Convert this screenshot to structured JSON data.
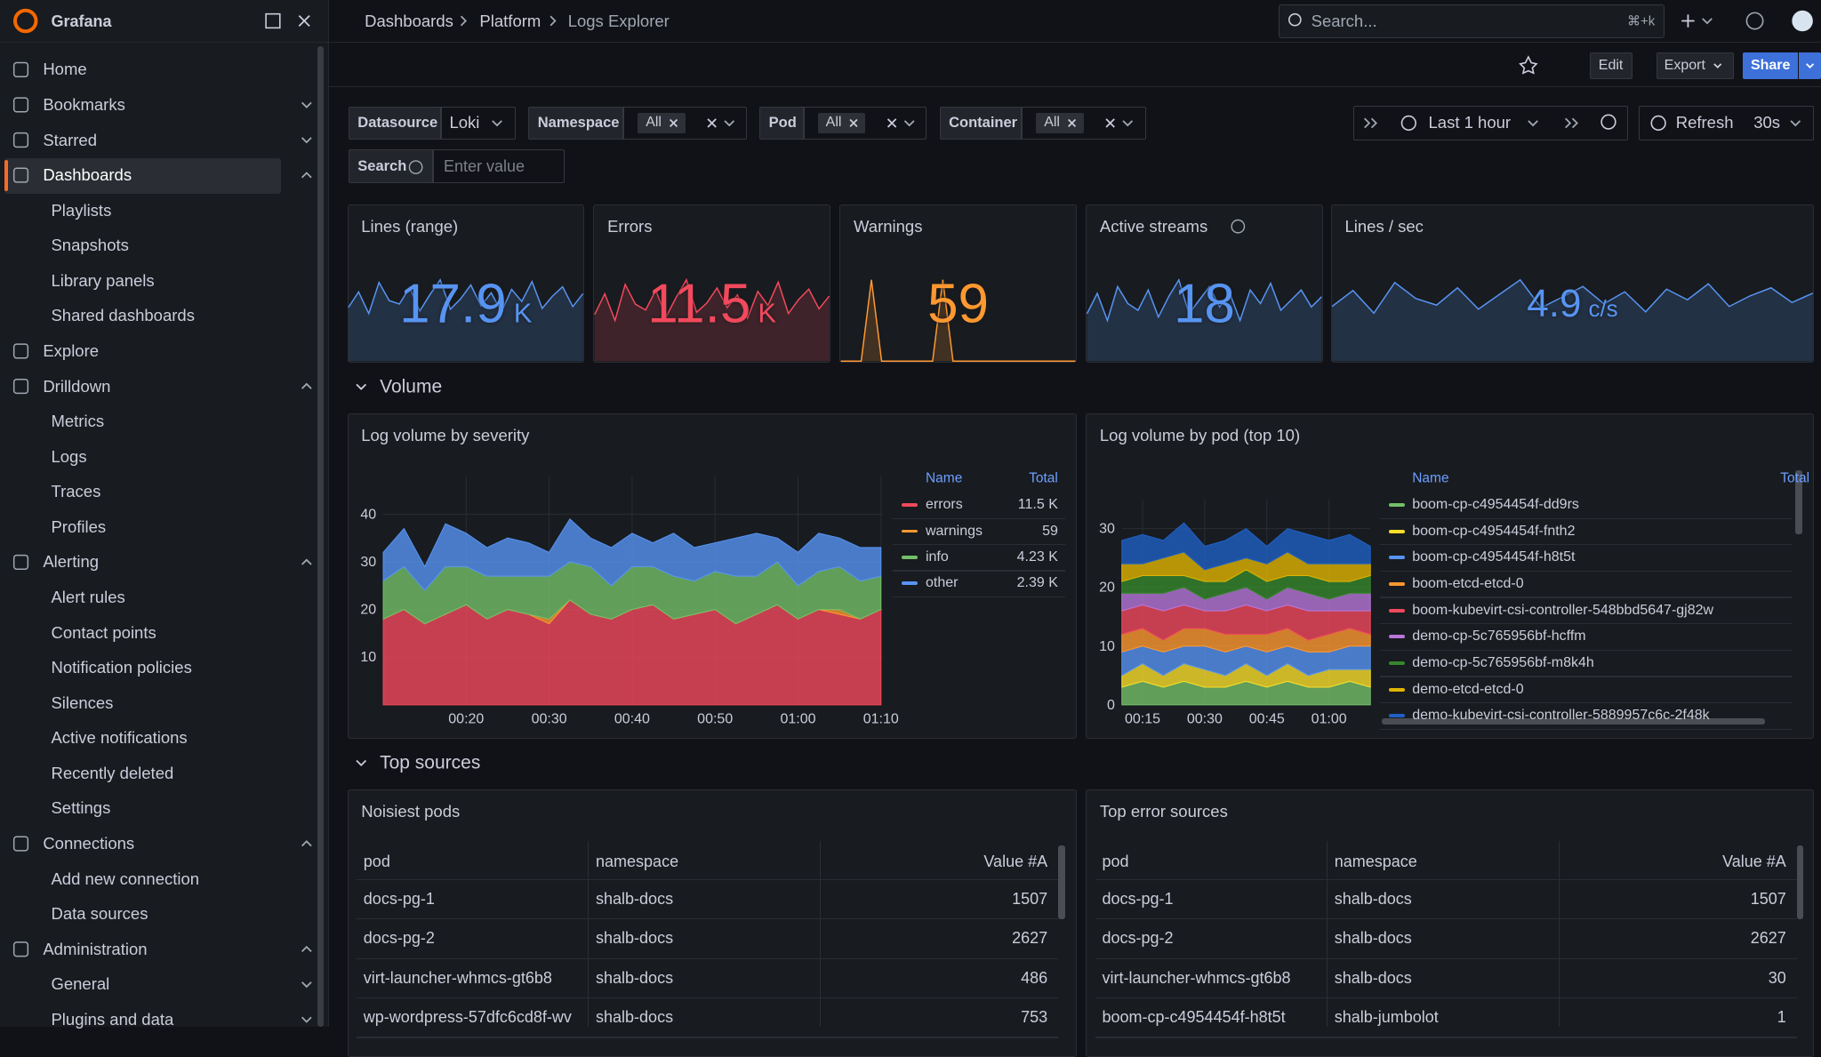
{
  "brand": "Grafana",
  "nav": [
    "Home",
    "Bookmarks",
    "Starred",
    "Dashboards",
    "Playlists",
    "Snapshots",
    "Library panels",
    "Shared dashboards",
    "Explore",
    "Drilldown",
    "Metrics",
    "Logs",
    "Traces",
    "Profiles",
    "Alerting",
    "Alert rules",
    "Contact points",
    "Notification policies",
    "Silences",
    "Active notifications",
    "Recently deleted",
    "Settings",
    "Connections",
    "Add new connection",
    "Data sources",
    "Administration",
    "General",
    "Plugins and data"
  ],
  "breadcrumbs": [
    "Dashboards",
    "Platform",
    "Logs Explorer"
  ],
  "search": {
    "placeholder": "Search...",
    "shortcut": "⌘+k"
  },
  "toolbar": {
    "edit": "Edit",
    "export": "Export",
    "share": "Share"
  },
  "variables": [
    {
      "label": "Datasource",
      "value": "Loki"
    },
    {
      "label": "Namespace",
      "value": "All"
    },
    {
      "label": "Pod",
      "value": "All"
    },
    {
      "label": "Container",
      "value": "All"
    }
  ],
  "search_variable": {
    "label": "Search",
    "placeholder": "Enter value"
  },
  "time_picker": {
    "range": "Last 1 hour",
    "refresh": "Refresh",
    "interval": "30s"
  },
  "stats": [
    {
      "title": "Lines (range)",
      "value": 17.9,
      "unit": "K",
      "color": "#5794f2",
      "sparkline": [
        62,
        80,
        55,
        91,
        70,
        66,
        85,
        58,
        77,
        94,
        60,
        72,
        88,
        64,
        79,
        57,
        83,
        69,
        92,
        61,
        75,
        86,
        63,
        78
      ]
    },
    {
      "title": "Errors",
      "value": 11.5,
      "unit": "K",
      "color": "#f2495c",
      "sparkline": [
        40,
        58,
        35,
        66,
        49,
        44,
        61,
        38,
        55,
        70,
        42,
        50,
        63,
        46,
        57,
        37,
        60,
        48,
        68,
        41,
        53,
        62,
        45,
        56
      ]
    },
    {
      "title": "Warnings",
      "value": 59,
      "color": "#ff9830",
      "sparkline": [
        0,
        0,
        0,
        1,
        0,
        0,
        0,
        0,
        0,
        0,
        1,
        0,
        0,
        0,
        0,
        0,
        0,
        0,
        0,
        0,
        0,
        0,
        0,
        0
      ]
    },
    {
      "title": "Active streams",
      "value": 18,
      "color": "#5794f2",
      "sparkline": [
        14,
        20,
        12,
        22,
        17,
        15,
        21,
        13,
        19,
        24,
        14,
        18,
        22,
        16,
        20,
        12,
        21,
        17,
        23,
        15,
        18,
        21,
        16,
        19
      ]
    },
    {
      "title": "Lines / sec",
      "value": 4.9,
      "unit": "c/s",
      "color": "#5794f2",
      "sparkline": [
        4.1,
        5.3,
        3.6,
        5.9,
        4.7,
        4.2,
        5.5,
        3.9,
        5.0,
        6.1,
        4.0,
        4.8,
        5.6,
        4.3,
        5.2,
        3.7,
        5.4,
        4.6,
        5.8,
        4.1,
        4.9,
        5.5,
        4.4,
        5.1
      ]
    }
  ],
  "rows": [
    "Volume",
    "Top sources"
  ],
  "charts": [
    {
      "type": "area",
      "stacked": true,
      "title": "Log volume by severity",
      "legend_headers": [
        "Name",
        "Total"
      ],
      "x": [
        10,
        12.5,
        15,
        17.5,
        20,
        22.5,
        25,
        27.5,
        30,
        32.5,
        35,
        37.5,
        40,
        42.5,
        45,
        47.5,
        50,
        52.5,
        55,
        57.5,
        60,
        62.5,
        65,
        67.5,
        70
      ],
      "xlim": [
        10,
        70.2
      ],
      "xticks": [
        {
          "value": 20,
          "label": "00:20"
        },
        {
          "value": 30,
          "label": "00:30"
        },
        {
          "value": 40,
          "label": "00:40"
        },
        {
          "value": 50,
          "label": "00:50"
        },
        {
          "value": 60,
          "label": "01:00"
        },
        {
          "value": 70,
          "label": "01:10"
        }
      ],
      "ylim": [
        0,
        48
      ],
      "yticks": [
        10,
        20,
        30,
        40
      ],
      "series": [
        {
          "name": "errors",
          "total": "11.5 K",
          "color": "#f2495c",
          "values": [
            18,
            20,
            17,
            19,
            21,
            18,
            20,
            19,
            17,
            22,
            19,
            18,
            20,
            21,
            18,
            19,
            20,
            17,
            19,
            21,
            18,
            20,
            19,
            18,
            20
          ]
        },
        {
          "name": "warnings",
          "total": "59",
          "color": "#ff9830",
          "values": [
            0,
            0,
            0,
            0,
            0,
            0,
            0,
            0,
            1,
            0,
            0,
            0,
            0,
            0,
            0,
            0,
            0,
            0,
            0,
            0,
            0,
            0,
            1,
            0,
            0
          ]
        },
        {
          "name": "info",
          "total": "4.23 K",
          "color": "#73bf69",
          "values": [
            8,
            9,
            7,
            10,
            8,
            9,
            7,
            8,
            9,
            8,
            10,
            7,
            9,
            8,
            9,
            7,
            8,
            10,
            8,
            9,
            7,
            8,
            9,
            8,
            7
          ]
        },
        {
          "name": "other",
          "total": "2.39 K",
          "color": "#5794f2",
          "values": [
            6,
            8,
            5,
            9,
            7,
            6,
            8,
            7,
            5,
            9,
            6,
            8,
            7,
            5,
            9,
            7,
            6,
            8,
            9,
            5,
            7,
            8,
            6,
            7,
            6
          ]
        }
      ]
    },
    {
      "type": "area",
      "stacked": true,
      "title": "Log volume by pod (top 10)",
      "legend_headers": [
        "Name",
        "Total"
      ],
      "x": [
        10,
        15,
        20,
        25,
        30,
        35,
        40,
        45,
        50,
        55,
        60,
        65,
        70
      ],
      "xlim": [
        10,
        70
      ],
      "xticks": [
        {
          "value": 15,
          "label": "00:15"
        },
        {
          "value": 30,
          "label": "00:30"
        },
        {
          "value": 45,
          "label": "00:45"
        },
        {
          "value": 60,
          "label": "01:00"
        }
      ],
      "ylim": [
        0,
        35
      ],
      "yticks": [
        0,
        10,
        20,
        30
      ],
      "series": [
        {
          "name": "boom-cp-c4954454f-dd9rs",
          "color": "#73bf69",
          "values": [
            3,
            4,
            3,
            4,
            3,
            3,
            4,
            3,
            4,
            3,
            3,
            4,
            3
          ]
        },
        {
          "name": "boom-cp-c4954454f-fnth2",
          "color": "#fade2a",
          "values": [
            2,
            3,
            2,
            3,
            3,
            2,
            3,
            2,
            3,
            2,
            3,
            2,
            3
          ]
        },
        {
          "name": "boom-cp-c4954454f-h8t5t",
          "color": "#5794f2",
          "values": [
            4,
            3,
            4,
            3,
            4,
            4,
            3,
            4,
            3,
            4,
            3,
            4,
            4
          ]
        },
        {
          "name": "boom-etcd-etcd-0",
          "color": "#ff9830",
          "values": [
            3,
            3,
            2,
            3,
            3,
            3,
            2,
            3,
            3,
            2,
            3,
            3,
            2
          ]
        },
        {
          "name": "boom-kubevirt-csi-controller-548bbd5647-gj82w",
          "color": "#f2495c",
          "values": [
            4,
            4,
            5,
            4,
            3,
            4,
            5,
            4,
            4,
            5,
            4,
            3,
            4
          ]
        },
        {
          "name": "demo-cp-5c765956bf-hcffm",
          "color": "#b877d9",
          "values": [
            3,
            2,
            3,
            3,
            2,
            3,
            3,
            2,
            3,
            3,
            2,
            3,
            3
          ]
        },
        {
          "name": "demo-cp-5c765956bf-m8k4h",
          "color": "#37872d",
          "values": [
            2,
            3,
            3,
            2,
            3,
            2,
            3,
            3,
            2,
            3,
            3,
            2,
            3
          ]
        },
        {
          "name": "demo-etcd-etcd-0",
          "color": "#e0b400",
          "values": [
            3,
            2,
            3,
            4,
            2,
            3,
            2,
            3,
            4,
            2,
            3,
            3,
            2
          ]
        },
        {
          "name": "demo-kubevirt-csi-controller-5889957c6c-2f48k",
          "color": "#1f60c4",
          "values": [
            4,
            5,
            3,
            5,
            4,
            4,
            5,
            3,
            4,
            5,
            4,
            5,
            3
          ]
        }
      ]
    }
  ],
  "tables": [
    {
      "title": "Noisiest pods",
      "columns": [
        "pod",
        "namespace",
        "Value #A"
      ],
      "rows": [
        [
          "docs-pg-1",
          "shalb-docs",
          1507
        ],
        [
          "docs-pg-2",
          "shalb-docs",
          2627
        ],
        [
          "virt-launcher-whmcs-gt6b8",
          "shalb-docs",
          486
        ],
        [
          "wp-wordpress-57dfc6cd8f-wv",
          "shalb-docs",
          753
        ]
      ]
    },
    {
      "title": "Top error sources",
      "columns": [
        "pod",
        "namespace",
        "Value #A"
      ],
      "rows": [
        [
          "docs-pg-1",
          "shalb-docs",
          1507
        ],
        [
          "docs-pg-2",
          "shalb-docs",
          2627
        ],
        [
          "virt-launcher-whmcs-gt6b8",
          "shalb-docs",
          30
        ],
        [
          "boom-cp-c4954454f-h8t5t",
          "shalb-jumbolot",
          1
        ]
      ]
    }
  ]
}
